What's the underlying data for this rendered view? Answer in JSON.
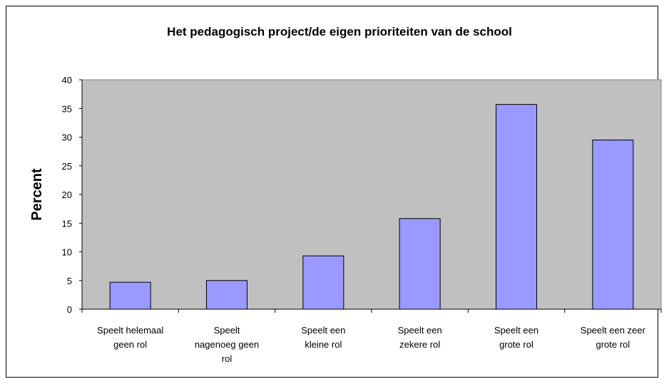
{
  "chart_data": {
    "type": "bar",
    "title": "Het pedagogisch project/de eigen prioriteiten van de school",
    "ylabel": "Percent",
    "categories": [
      "Speelt helemaal\ngeen rol",
      "Speelt\nnagenoeg geen\nrol",
      "Speelt een\nkleine rol",
      "Speelt een\nzekere rol",
      "Speelt een\ngrote rol",
      "Speelt een zeer\ngrote rol"
    ],
    "values": [
      4.7,
      5.0,
      9.3,
      15.8,
      35.7,
      29.5
    ],
    "color": "#9999ff",
    "ylim": [
      0,
      40
    ],
    "yticks": [
      0,
      5,
      10,
      15,
      20,
      25,
      30,
      35,
      40
    ],
    "grid": false,
    "plot_background": "#c0c0c0"
  }
}
